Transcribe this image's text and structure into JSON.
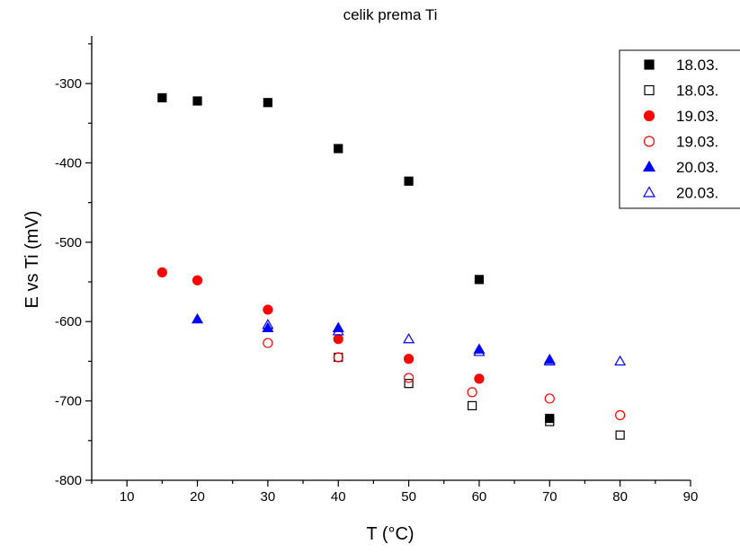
{
  "chart_data": {
    "type": "scatter",
    "title": "celik prema Ti",
    "xlabel": "T (°C)",
    "ylabel": "E vs Ti (mV)",
    "xlim": [
      5,
      90
    ],
    "ylim": [
      -800,
      -240
    ],
    "xticks": [
      10,
      20,
      30,
      40,
      50,
      60,
      70,
      80,
      90
    ],
    "yticks": [
      -800,
      -700,
      -600,
      -500,
      -400,
      -300
    ],
    "grid": false,
    "legend_position": "top-right",
    "series": [
      {
        "name": "18.03.",
        "marker": "square",
        "filled": true,
        "color": "#000000",
        "x": [
          15,
          20,
          30,
          40,
          50,
          60,
          70
        ],
        "y": [
          -318,
          -322,
          -324,
          -382,
          -423,
          -547,
          -722
        ]
      },
      {
        "name": "18.03.",
        "marker": "square",
        "filled": false,
        "color": "#000000",
        "x": [
          40,
          50,
          59,
          70,
          80
        ],
        "y": [
          -645,
          -678,
          -706,
          -726,
          -743
        ]
      },
      {
        "name": "19.03.",
        "marker": "circle",
        "filled": true,
        "color": "#ff0000",
        "x": [
          15,
          20,
          30,
          40,
          50,
          60
        ],
        "y": [
          -538,
          -548,
          -585,
          -622,
          -647,
          -672
        ]
      },
      {
        "name": "19.03.",
        "marker": "circle",
        "filled": false,
        "color": "#ff0000",
        "x": [
          30,
          40,
          50,
          59,
          70,
          80
        ],
        "y": [
          -627,
          -645,
          -671,
          -689,
          -697,
          -718
        ]
      },
      {
        "name": "20.03.",
        "marker": "triangle",
        "filled": true,
        "color": "#0000ff",
        "x": [
          20,
          30,
          40,
          60,
          70
        ],
        "y": [
          -597,
          -608,
          -608,
          -635,
          -648
        ]
      },
      {
        "name": "20.03.",
        "marker": "triangle",
        "filled": false,
        "color": "#0000ff",
        "x": [
          30,
          40,
          50,
          60,
          70,
          80
        ],
        "y": [
          -604,
          -612,
          -622,
          -638,
          -650,
          -650
        ]
      }
    ]
  }
}
